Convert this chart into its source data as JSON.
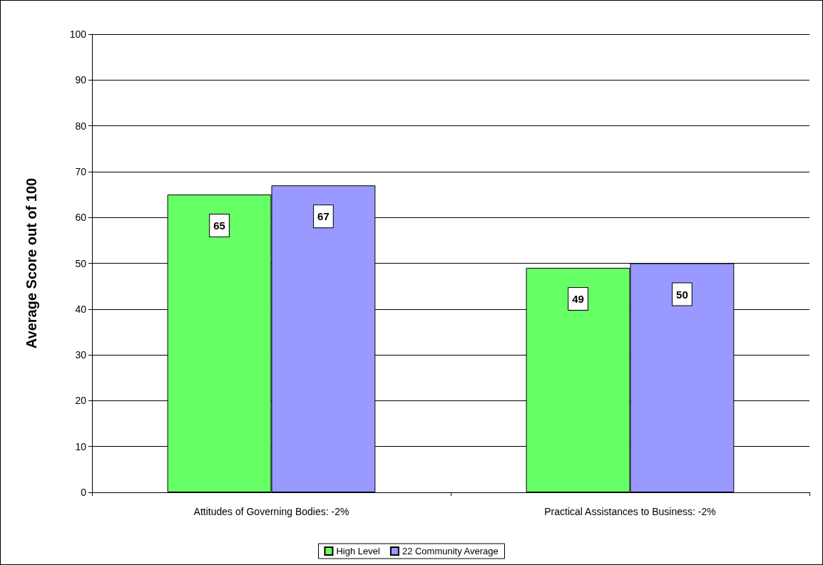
{
  "chart_data": {
    "type": "bar",
    "ylabel": "Average Score out of 100",
    "categories": [
      "Attitudes of Governing Bodies: -2%",
      "Practical Assistances to Business: -2%"
    ],
    "series": [
      {
        "name": "High Level",
        "color": "#66ff66",
        "values": [
          65,
          49
        ]
      },
      {
        "name": "22 Community Average",
        "color": "#9999ff",
        "values": [
          67,
          50
        ]
      }
    ],
    "ylim": [
      0,
      100
    ],
    "yticks": [
      0,
      10,
      20,
      30,
      40,
      50,
      60,
      70,
      80,
      90,
      100
    ],
    "grid": "y",
    "legend": "bottom",
    "data_labels": true
  }
}
